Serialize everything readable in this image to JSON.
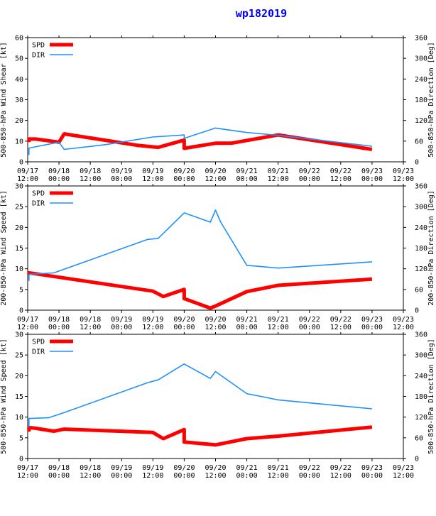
{
  "title": "wp182019",
  "colors": {
    "spd": "#ff0000",
    "dir": "#1e90ff",
    "axis": "#000000",
    "title": "#0000ff"
  },
  "x_ticks": [
    {
      "t": 0,
      "top": "09/17",
      "bottom": "12:00"
    },
    {
      "t": 12,
      "top": "09/18",
      "bottom": "00:00"
    },
    {
      "t": 24,
      "top": "09/18",
      "bottom": "12:00"
    },
    {
      "t": 36,
      "top": "09/19",
      "bottom": "00:00"
    },
    {
      "t": 48,
      "top": "09/19",
      "bottom": "12:00"
    },
    {
      "t": 60,
      "top": "09/20",
      "bottom": "00:00"
    },
    {
      "t": 72,
      "top": "09/20",
      "bottom": "12:00"
    },
    {
      "t": 84,
      "top": "09/21",
      "bottom": "00:00"
    },
    {
      "t": 96,
      "top": "09/21",
      "bottom": "12:00"
    },
    {
      "t": 108,
      "top": "09/22",
      "bottom": "00:00"
    },
    {
      "t": 120,
      "top": "09/22",
      "bottom": "12:00"
    },
    {
      "t": 132,
      "top": "09/23",
      "bottom": "00:00"
    },
    {
      "t": 144,
      "top": "09/23",
      "bottom": "12:00"
    }
  ],
  "chart_data": [
    {
      "type": "line",
      "id": "shear",
      "xlim": [
        0,
        144
      ],
      "ylabel_left": "500-850-hPa Wind Shear [kt]",
      "ylabel_right": "500-850-hPa Direction [Deg]",
      "ylim_left": [
        0,
        60
      ],
      "yticks_left": [
        0,
        10,
        20,
        30,
        40,
        50,
        60
      ],
      "ylim_right": [
        0,
        360
      ],
      "yticks_right": [
        0,
        60,
        120,
        180,
        240,
        300,
        360
      ],
      "legend": [
        "SPD",
        "DIR"
      ],
      "series": [
        {
          "name": "SPD",
          "axis": "left",
          "x": [
            0.5,
            0.5,
            3,
            12,
            14,
            42,
            50,
            60,
            60,
            72,
            78,
            96,
            132
          ],
          "y": [
            9.5,
            11,
            11,
            9.5,
            13.5,
            8,
            7,
            10.5,
            6.5,
            9,
            9,
            13,
            6
          ]
        },
        {
          "name": "DIR",
          "axis": "right",
          "x": [
            0.5,
            0.5,
            12,
            14,
            30,
            48,
            60,
            60,
            72,
            84,
            96,
            132
          ],
          "y": [
            20,
            40,
            57,
            36,
            50,
            72,
            78,
            68,
            98,
            85,
            77,
            45
          ]
        }
      ]
    },
    {
      "type": "line",
      "id": "deep",
      "xlim": [
        0,
        144
      ],
      "ylabel_left": "200-850-hPa Wind Speed [kt]",
      "ylabel_right": "200-850-hPa Direction [Deg]",
      "ylim_left": [
        0,
        30
      ],
      "yticks_left": [
        0,
        5,
        10,
        15,
        20,
        25,
        30
      ],
      "ylim_right": [
        0,
        360
      ],
      "yticks_right": [
        0,
        60,
        120,
        180,
        240,
        300,
        360
      ],
      "legend": [
        "SPD",
        "DIR"
      ],
      "series": [
        {
          "name": "SPD",
          "axis": "left",
          "x": [
            0.5,
            0.5,
            3,
            48,
            52,
            60,
            60,
            70,
            72,
            84,
            96,
            132
          ],
          "y": [
            8.5,
            9,
            8.8,
            4.6,
            3.3,
            5,
            2.8,
            0.5,
            1,
            4.5,
            6,
            7.5
          ]
        },
        {
          "name": "DIR",
          "axis": "right",
          "x": [
            0.5,
            0.5,
            10,
            46,
            50,
            60,
            70,
            72,
            74,
            84,
            96,
            132
          ],
          "y": [
            85,
            104,
            108,
            205,
            208,
            282,
            255,
            290,
            255,
            130,
            122,
            140
          ]
        }
      ]
    },
    {
      "type": "line",
      "id": "mid",
      "xlim": [
        0,
        144
      ],
      "ylabel_left": "500-850-hPa Wind Speed [kt]",
      "ylabel_right": "500-850-hPa Direction [Deg]",
      "ylim_left": [
        0,
        30
      ],
      "yticks_left": [
        0,
        5,
        10,
        15,
        20,
        25,
        30
      ],
      "ylim_right": [
        0,
        360
      ],
      "yticks_right": [
        0,
        60,
        120,
        180,
        240,
        300,
        360
      ],
      "legend": [
        "SPD",
        "DIR"
      ],
      "series": [
        {
          "name": "SPD",
          "axis": "left",
          "x": [
            0.5,
            0.5,
            3,
            10,
            14,
            48,
            52,
            60,
            60,
            72,
            84,
            96,
            132
          ],
          "y": [
            6.5,
            7.5,
            7.3,
            6.6,
            7.1,
            6.3,
            4.8,
            7,
            4,
            3.3,
            4.8,
            5.4,
            7.6
          ]
        },
        {
          "name": "DIR",
          "axis": "right",
          "x": [
            0.5,
            0.5,
            8,
            14,
            46,
            50,
            60,
            70,
            72,
            84,
            96,
            132
          ],
          "y": [
            90,
            116,
            118,
            133,
            220,
            228,
            274,
            232,
            252,
            188,
            170,
            144
          ]
        }
      ]
    }
  ]
}
